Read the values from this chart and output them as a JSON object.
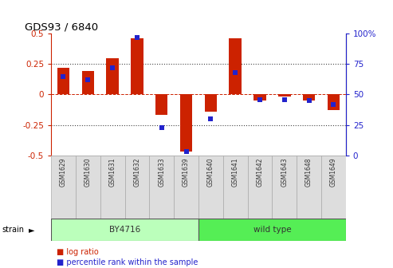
{
  "title": "GDS93 / 6840",
  "samples": [
    "GSM1629",
    "GSM1630",
    "GSM1631",
    "GSM1632",
    "GSM1633",
    "GSM1639",
    "GSM1640",
    "GSM1641",
    "GSM1642",
    "GSM1643",
    "GSM1648",
    "GSM1649"
  ],
  "log_ratio": [
    0.22,
    0.19,
    0.3,
    0.46,
    -0.17,
    -0.47,
    -0.14,
    0.46,
    -0.05,
    -0.02,
    -0.05,
    -0.13
  ],
  "percentile_rank": [
    65,
    62,
    72,
    97,
    23,
    3,
    30,
    68,
    46,
    46,
    45,
    42
  ],
  "strains": [
    {
      "label": "BY4716",
      "start": 0,
      "end": 6,
      "color": "#bbffbb"
    },
    {
      "label": "wild type",
      "start": 6,
      "end": 12,
      "color": "#55ee55"
    }
  ],
  "n_by4716": 6,
  "n_wildtype": 6,
  "ylim": [
    -0.5,
    0.5
  ],
  "yticks_left": [
    -0.5,
    -0.25,
    0,
    0.25,
    0.5
  ],
  "yticks_right": [
    0,
    25,
    50,
    75,
    100
  ],
  "bar_color": "#cc2200",
  "dot_color": "#2222cc",
  "zero_line_color": "#cc2200",
  "dotted_line_color": "#444444",
  "background_color": "#ffffff",
  "legend_items": [
    "log ratio",
    "percentile rank within the sample"
  ],
  "bar_width": 0.5,
  "dot_size": 4
}
